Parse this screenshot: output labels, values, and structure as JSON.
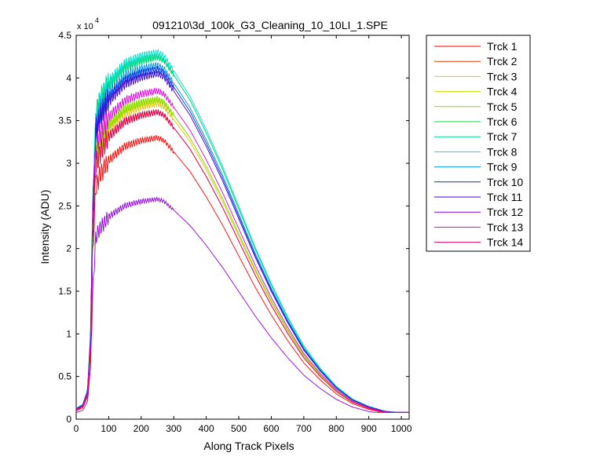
{
  "chart_data": {
    "type": "line",
    "title": "091210\\3d_100k_G3_Cleaning_10_10LI_1.SPE",
    "xlabel": "Along Track Pixels",
    "ylabel": "Intensity (ADU)",
    "y_multiplier_label": "x 10",
    "y_multiplier_exponent": "4",
    "xlim": [
      0,
      1024
    ],
    "ylim": [
      0,
      45000
    ],
    "xticks": [
      0,
      100,
      200,
      300,
      400,
      500,
      600,
      700,
      800,
      900,
      1000
    ],
    "xtick_labels": [
      "0",
      "100",
      "200",
      "300",
      "400",
      "500",
      "600",
      "700",
      "800",
      "900",
      "1000"
    ],
    "yticks": [
      0,
      5000,
      10000,
      15000,
      20000,
      25000,
      30000,
      35000,
      40000,
      45000
    ],
    "ytick_labels": [
      "0",
      "0.5",
      "1",
      "1.5",
      "2",
      "2.5",
      "3",
      "3.5",
      "4",
      "4.5"
    ],
    "grid": false,
    "legend_position": "outside-right",
    "x_sample_points": [
      0,
      20,
      35,
      45,
      50,
      60,
      70,
      80,
      100,
      150,
      200,
      250,
      270,
      300,
      350,
      400,
      450,
      500,
      550,
      600,
      650,
      700,
      750,
      800,
      850,
      900,
      950,
      1000,
      1024
    ],
    "series": [
      {
        "name": "Trck 1",
        "color": "#ff0000",
        "peak": 33000
      },
      {
        "name": "Trck 2",
        "color": "#e03a00",
        "peak": 36000
      },
      {
        "name": "Trck 3",
        "color": "#e0c000",
        "peak": 37000
      },
      {
        "name": "Trck 4",
        "color": "#c8e000",
        "peak": 37500
      },
      {
        "name": "Trck 5",
        "color": "#80e000",
        "peak": 37500
      },
      {
        "name": "Trck 6",
        "color": "#00e040",
        "peak": 42500
      },
      {
        "name": "Trck 7",
        "color": "#00d890",
        "peak": 42500
      },
      {
        "name": "Trck 8",
        "color": "#00e0d0",
        "peak": 43000
      },
      {
        "name": "Trck 9",
        "color": "#0090e0",
        "peak": 41500
      },
      {
        "name": "Trck 10",
        "color": "#0030e0",
        "peak": 41000
      },
      {
        "name": "Trck 11",
        "color": "#4000d0",
        "peak": 40500
      },
      {
        "name": "Trck 12",
        "color": "#9000e0",
        "peak": 25800
      },
      {
        "name": "Trck 13",
        "color": "#e000e0",
        "peak": 38500
      },
      {
        "name": "Trck 14",
        "color": "#e00060",
        "peak": 36000
      }
    ],
    "profile_shape": [
      0.03,
      0.04,
      0.08,
      0.25,
      0.55,
      0.82,
      0.86,
      0.88,
      0.92,
      0.97,
      0.99,
      1.0,
      0.99,
      0.95,
      0.88,
      0.79,
      0.69,
      0.58,
      0.47,
      0.37,
      0.28,
      0.2,
      0.14,
      0.09,
      0.055,
      0.035,
      0.022,
      0.018,
      0.017
    ]
  }
}
